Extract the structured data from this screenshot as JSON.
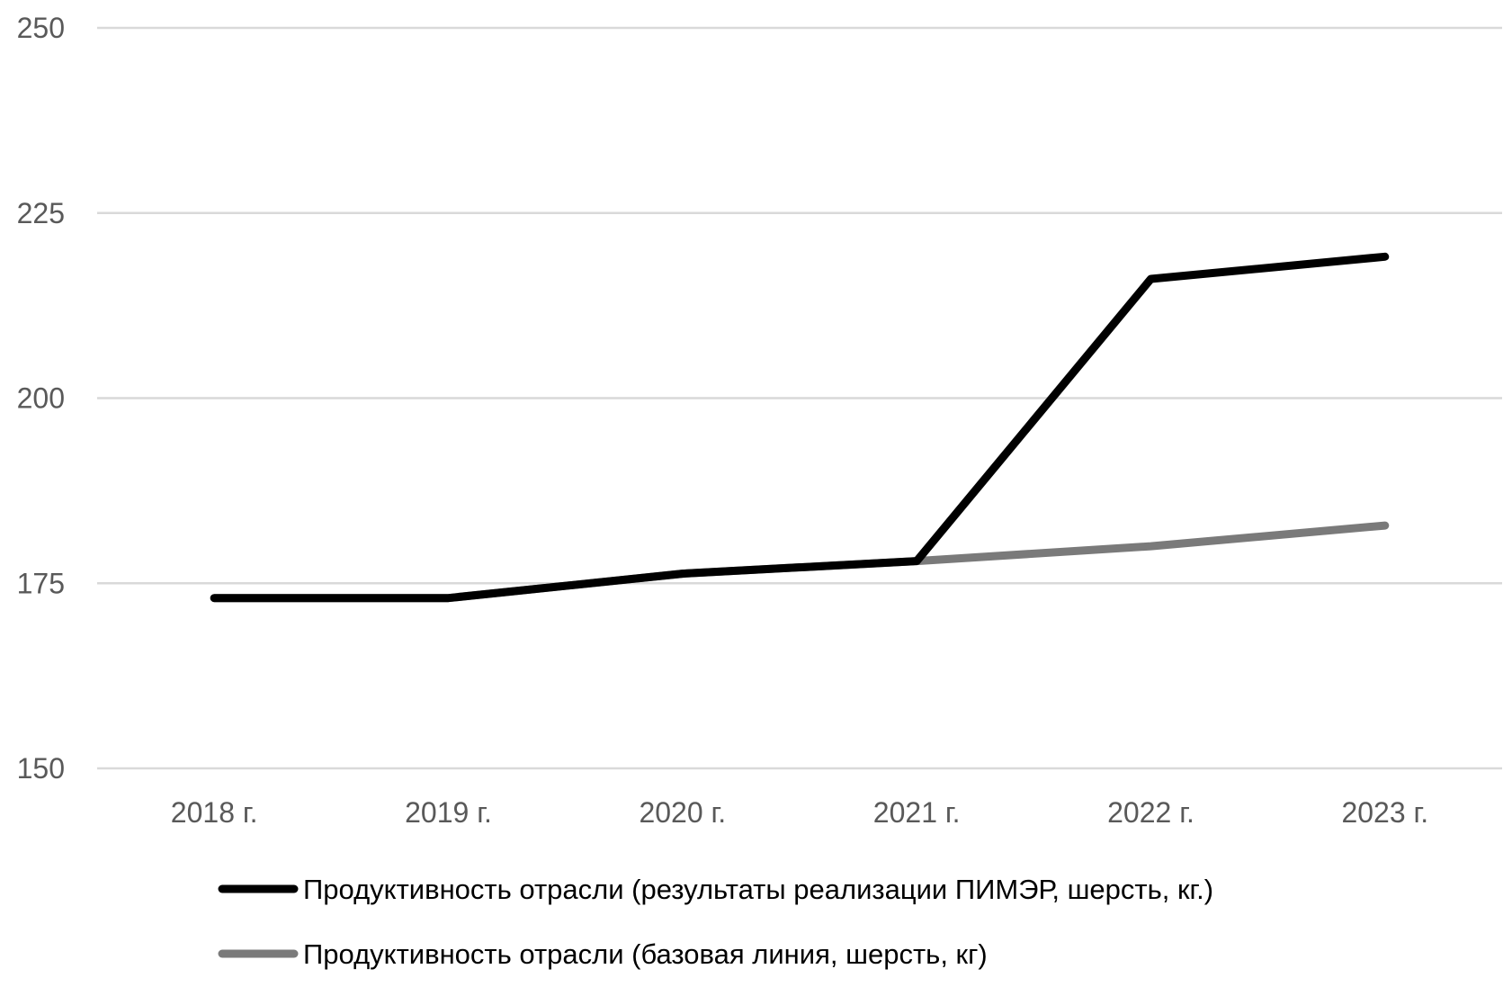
{
  "chart_data": {
    "type": "line",
    "title": "",
    "xlabel": "",
    "ylabel": "",
    "categories": [
      "2018 г.",
      "2019 г.",
      "2020 г.",
      "2021 г.",
      "2022 г.",
      "2023 г."
    ],
    "ylim": [
      150,
      250
    ],
    "yticks": [
      150,
      175,
      200,
      225,
      250
    ],
    "grid": true,
    "legend_position": "bottom",
    "series": [
      {
        "name": "Продуктивность отрасли (результаты реализации ПИМЭР, шерсть, кг.)",
        "color": "#000000",
        "values": [
          173,
          173,
          176.3,
          178,
          216.1,
          219.1
        ]
      },
      {
        "name": "Продуктивность отрасли (базовая линия, шерсть, кг)",
        "color": "#7a7a7a",
        "values": [
          173,
          173,
          176.3,
          178,
          180,
          182.8
        ]
      }
    ]
  }
}
